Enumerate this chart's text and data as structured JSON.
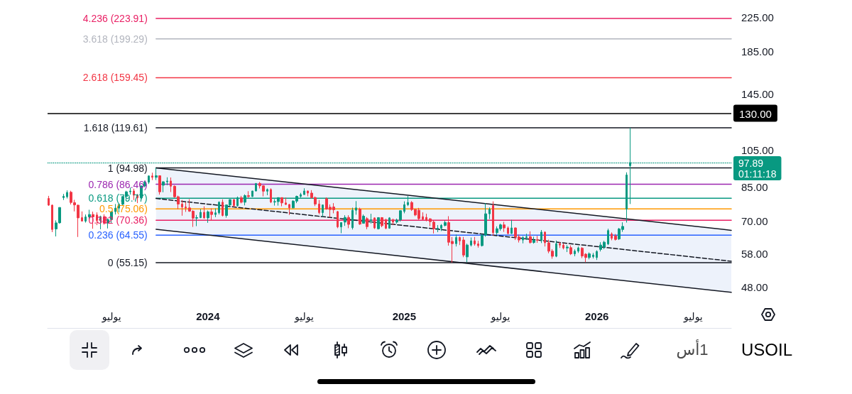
{
  "chart_data": {
    "type": "candlestick",
    "title": "USOIL",
    "annotations": [
      "01:11:18",
      "1أس"
    ],
    "xlim": [
      "2023-03-04",
      "2026-09-16"
    ],
    "xticks": [
      {
        "value": "2023-07-03",
        "label": "يوليو"
      },
      {
        "value": "2024-01-01",
        "label": "2024"
      },
      {
        "value": "2024-07-01",
        "label": "يوليو"
      },
      {
        "value": "2025-01-06",
        "label": "2025"
      },
      {
        "value": "2025-07-07",
        "label": "يوليو"
      },
      {
        "value": "2026-01-05",
        "label": "2026"
      },
      {
        "value": "2026-07-06",
        "label": "يوليو"
      }
    ],
    "ylim": [
      37.9,
      249
    ],
    "log": true,
    "yticks": [
      {
        "value": 225,
        "label": "225.00"
      },
      {
        "value": 185,
        "label": "185.00"
      },
      {
        "value": 145,
        "label": "145.00"
      },
      {
        "value": 105,
        "label": "105.00"
      },
      {
        "value": 85,
        "label": "85.00"
      },
      {
        "value": 70,
        "label": "70.00"
      },
      {
        "value": 58,
        "label": "58.00"
      },
      {
        "value": 48,
        "label": "48.00"
      }
    ],
    "x": [
      "2023-03-06",
      "2023-03-13",
      "2023-03-20",
      "2023-03-27",
      "2023-04-03",
      "2023-04-10",
      "2023-04-17",
      "2023-04-24",
      "2023-05-01",
      "2023-05-08",
      "2023-05-15",
      "2023-05-22",
      "2023-05-29",
      "2023-06-05",
      "2023-06-12",
      "2023-06-19",
      "2023-06-26",
      "2023-07-03",
      "2023-07-10",
      "2023-07-17",
      "2023-07-24",
      "2023-07-31",
      "2023-08-07",
      "2023-08-14",
      "2023-08-21",
      "2023-08-28",
      "2023-09-04",
      "2023-09-11",
      "2023-09-18",
      "2023-09-25",
      "2023-10-02",
      "2023-10-09",
      "2023-10-16",
      "2023-10-23",
      "2023-10-30",
      "2023-11-06",
      "2023-11-13",
      "2023-11-20",
      "2023-11-27",
      "2023-12-04",
      "2023-12-11",
      "2023-12-18",
      "2023-12-25",
      "2024-01-01",
      "2024-01-08",
      "2024-01-15",
      "2024-01-22",
      "2024-01-29",
      "2024-02-05",
      "2024-02-12",
      "2024-02-19",
      "2024-02-26",
      "2024-03-04",
      "2024-03-11",
      "2024-03-18",
      "2024-03-25",
      "2024-04-01",
      "2024-04-08",
      "2024-04-15",
      "2024-04-22",
      "2024-04-29",
      "2024-05-06",
      "2024-05-13",
      "2024-05-20",
      "2024-05-27",
      "2024-06-03",
      "2024-06-10",
      "2024-06-17",
      "2024-06-24",
      "2024-07-01",
      "2024-07-08",
      "2024-07-15",
      "2024-07-22",
      "2024-07-29",
      "2024-08-05",
      "2024-08-12",
      "2024-08-19",
      "2024-08-26",
      "2024-09-02",
      "2024-09-09",
      "2024-09-16",
      "2024-09-23",
      "2024-09-30",
      "2024-10-07",
      "2024-10-14",
      "2024-10-21",
      "2024-10-28",
      "2024-11-04",
      "2024-11-11",
      "2024-11-18",
      "2024-11-25",
      "2024-12-02",
      "2024-12-09",
      "2024-12-16",
      "2024-12-23",
      "2024-12-30",
      "2025-01-06",
      "2025-01-13",
      "2025-01-20",
      "2025-01-27",
      "2025-02-03",
      "2025-02-10",
      "2025-02-17",
      "2025-02-24",
      "2025-03-03",
      "2025-03-10",
      "2025-03-17",
      "2025-03-24",
      "2025-03-31",
      "2025-04-07",
      "2025-04-14",
      "2025-04-21",
      "2025-04-28",
      "2025-05-05",
      "2025-05-12",
      "2025-05-19",
      "2025-05-26",
      "2025-06-02",
      "2025-06-09",
      "2025-06-16",
      "2025-06-23",
      "2025-06-30",
      "2025-07-07",
      "2025-07-14",
      "2025-07-21",
      "2025-07-28",
      "2025-08-04",
      "2025-08-11",
      "2025-08-18",
      "2025-08-25",
      "2025-09-01",
      "2025-09-08",
      "2025-09-15",
      "2025-09-22",
      "2025-09-29",
      "2025-10-06",
      "2025-10-13",
      "2025-10-20",
      "2025-10-27",
      "2025-11-03",
      "2025-11-10",
      "2025-11-17",
      "2025-11-24",
      "2025-12-01",
      "2025-12-08",
      "2025-12-15",
      "2025-12-22",
      "2025-12-29",
      "2026-01-05",
      "2026-01-12",
      "2026-01-19",
      "2026-01-26",
      "2026-02-02",
      "2026-02-09",
      "2026-02-16",
      "2026-02-23",
      "2026-03-02",
      "2026-03-09"
    ],
    "ohlc": [
      [
        79.7,
        80.9,
        76.4,
        76.7
      ],
      [
        76.7,
        77.0,
        65.7,
        66.7
      ],
      [
        66.9,
        70.3,
        64.1,
        69.3
      ],
      [
        69.3,
        75.7,
        69.0,
        75.7
      ],
      [
        80.1,
        81.8,
        79.0,
        80.7
      ],
      [
        80.5,
        83.5,
        79.7,
        82.5
      ],
      [
        82.6,
        83.3,
        77.0,
        77.9
      ],
      [
        77.8,
        79.1,
        74.0,
        76.8
      ],
      [
        76.7,
        76.9,
        63.9,
        71.3
      ],
      [
        71.4,
        74.0,
        69.9,
        70.0
      ],
      [
        70.0,
        72.7,
        69.4,
        71.7
      ],
      [
        71.7,
        74.7,
        70.7,
        72.7
      ],
      [
        72.7,
        73.9,
        67.0,
        71.7
      ],
      [
        72.5,
        73.6,
        68.4,
        70.2
      ],
      [
        70.2,
        72.2,
        66.8,
        71.8
      ],
      [
        71.8,
        72.8,
        68.6,
        69.2
      ],
      [
        69.2,
        71.0,
        67.1,
        70.6
      ],
      [
        70.6,
        74.0,
        69.0,
        73.9
      ],
      [
        73.9,
        77.2,
        72.7,
        75.4
      ],
      [
        75.4,
        77.1,
        73.6,
        77.1
      ],
      [
        77.1,
        80.6,
        76.6,
        80.6
      ],
      [
        80.6,
        83.3,
        78.8,
        82.8
      ],
      [
        82.8,
        84.9,
        81.5,
        83.2
      ],
      [
        83.2,
        84.3,
        79.0,
        81.2
      ],
      [
        81.2,
        81.8,
        77.6,
        80.0
      ],
      [
        80.0,
        86.0,
        79.3,
        85.6
      ],
      [
        85.6,
        88.1,
        85.0,
        87.5
      ],
      [
        87.5,
        91.0,
        86.6,
        90.7
      ],
      [
        90.7,
        92.4,
        88.6,
        90.0
      ],
      [
        90.0,
        94.98,
        88.6,
        90.8
      ],
      [
        90.8,
        91.0,
        81.5,
        82.8
      ],
      [
        86.0,
        88.0,
        82.6,
        87.7
      ],
      [
        87.7,
        90.0,
        86.0,
        88.1
      ],
      [
        88.1,
        89.9,
        82.7,
        85.5
      ],
      [
        85.5,
        85.9,
        80.0,
        80.5
      ],
      [
        80.5,
        81.0,
        75.0,
        77.2
      ],
      [
        77.2,
        79.0,
        72.2,
        75.9
      ],
      [
        75.9,
        78.0,
        73.8,
        75.5
      ],
      [
        75.5,
        79.4,
        73.8,
        74.1
      ],
      [
        74.1,
        74.5,
        67.7,
        71.2
      ],
      [
        71.2,
        72.5,
        68.0,
        71.4
      ],
      [
        71.4,
        75.0,
        71.2,
        73.6
      ],
      [
        73.6,
        76.2,
        70.9,
        71.3
      ],
      [
        71.3,
        74.4,
        69.3,
        73.8
      ],
      [
        73.8,
        75.3,
        70.2,
        72.7
      ],
      [
        72.7,
        75.3,
        71.6,
        73.4
      ],
      [
        73.4,
        78.4,
        72.7,
        78.0
      ],
      [
        78.0,
        79.3,
        71.9,
        72.3
      ],
      [
        72.3,
        77.0,
        71.4,
        76.8
      ],
      [
        76.8,
        79.3,
        75.9,
        79.2
      ],
      [
        79.2,
        79.4,
        75.9,
        76.5
      ],
      [
        76.5,
        80.6,
        76.1,
        80.0
      ],
      [
        80.0,
        80.9,
        77.5,
        78.0
      ],
      [
        78.0,
        81.6,
        76.6,
        81.0
      ],
      [
        81.0,
        83.1,
        80.0,
        80.6
      ],
      [
        80.6,
        83.3,
        80.4,
        83.2
      ],
      [
        83.2,
        87.0,
        83.0,
        86.9
      ],
      [
        86.9,
        87.6,
        84.4,
        85.7
      ],
      [
        85.7,
        86.0,
        80.7,
        83.1
      ],
      [
        83.1,
        84.4,
        81.2,
        83.9
      ],
      [
        83.9,
        84.5,
        77.6,
        78.1
      ],
      [
        78.1,
        79.4,
        76.5,
        78.3
      ],
      [
        78.3,
        80.1,
        76.5,
        80.1
      ],
      [
        80.1,
        80.2,
        76.2,
        77.7
      ],
      [
        77.7,
        80.1,
        76.8,
        77.0
      ],
      [
        77.0,
        77.2,
        72.5,
        75.5
      ],
      [
        75.5,
        78.9,
        75.4,
        78.5
      ],
      [
        78.5,
        81.0,
        77.6,
        80.7
      ],
      [
        80.7,
        82.3,
        80.0,
        81.5
      ],
      [
        81.5,
        84.5,
        81.4,
        83.2
      ],
      [
        83.2,
        83.4,
        80.7,
        82.2
      ],
      [
        82.2,
        83.6,
        79.6,
        80.1
      ],
      [
        80.1,
        80.6,
        76.3,
        77.2
      ],
      [
        77.2,
        79.0,
        72.8,
        73.5
      ],
      [
        73.5,
        77.0,
        71.7,
        76.8
      ],
      [
        79.6,
        80.2,
        74.7,
        75.0
      ],
      [
        75.8,
        77.0,
        71.5,
        74.8
      ],
      [
        75.9,
        77.6,
        73.2,
        74.7
      ],
      [
        73.9,
        74.2,
        67.2,
        67.7
      ],
      [
        67.7,
        69.5,
        65.3,
        69.4
      ],
      [
        69.6,
        72.4,
        68.1,
        71.5
      ],
      [
        71.5,
        72.4,
        67.2,
        68.7
      ],
      [
        67.4,
        75.6,
        66.7,
        74.5
      ],
      [
        74.5,
        78.5,
        72.6,
        75.5
      ],
      [
        75.0,
        75.6,
        68.5,
        68.8
      ],
      [
        69.1,
        72.7,
        69.0,
        72.0
      ],
      [
        71.0,
        71.6,
        66.8,
        67.8
      ],
      [
        70.1,
        73.0,
        69.0,
        70.5
      ],
      [
        71.3,
        71.5,
        66.9,
        67.3
      ],
      [
        67.0,
        71.6,
        66.7,
        71.4
      ],
      [
        71.4,
        71.6,
        67.6,
        68.2
      ],
      [
        70.5,
        71.0,
        66.8,
        67.2
      ],
      [
        67.2,
        71.6,
        67.0,
        71.3
      ],
      [
        70.5,
        71.0,
        68.4,
        69.6
      ],
      [
        69.6,
        71.0,
        69.0,
        70.4
      ],
      [
        70.5,
        74.5,
        69.8,
        74.3
      ],
      [
        74.0,
        78.4,
        73.2,
        76.9
      ],
      [
        76.9,
        80.8,
        76.3,
        77.9
      ],
      [
        77.9,
        78.5,
        74.2,
        74.8
      ],
      [
        74.8,
        75.2,
        72.0,
        72.5
      ],
      [
        74.5,
        75.5,
        70.5,
        71.0
      ],
      [
        71.8,
        73.6,
        70.2,
        70.7
      ],
      [
        71.5,
        73.0,
        69.9,
        70.4
      ],
      [
        70.9,
        71.2,
        68.0,
        69.8
      ],
      [
        69.6,
        70.2,
        65.2,
        67.0
      ],
      [
        67.0,
        68.4,
        65.7,
        67.2
      ],
      [
        67.2,
        68.8,
        66.1,
        68.3
      ],
      [
        68.3,
        70.2,
        67.9,
        69.4
      ],
      [
        69.4,
        72.0,
        60.8,
        62.0
      ],
      [
        62.3,
        63.9,
        55.15,
        61.5
      ],
      [
        61.5,
        64.8,
        60.5,
        63.7
      ],
      [
        63.7,
        64.1,
        61.0,
        62.5
      ],
      [
        62.8,
        63.9,
        56.9,
        57.6
      ],
      [
        57.0,
        61.5,
        55.3,
        61.0
      ],
      [
        61.0,
        63.7,
        60.5,
        62.5
      ],
      [
        62.5,
        63.9,
        60.8,
        61.4
      ],
      [
        61.4,
        62.5,
        60.1,
        60.8
      ],
      [
        60.8,
        65.0,
        60.5,
        64.6
      ],
      [
        64.6,
        77.6,
        64.0,
        73.0
      ],
      [
        73.0,
        75.7,
        70.8,
        74.9
      ],
      [
        76.6,
        78.4,
        64.4,
        65.5
      ],
      [
        65.5,
        67.9,
        64.7,
        67.0
      ],
      [
        67.0,
        69.0,
        66.2,
        68.5
      ],
      [
        68.5,
        69.7,
        65.8,
        67.3
      ],
      [
        67.3,
        67.9,
        64.8,
        65.2
      ],
      [
        65.2,
        70.5,
        65.0,
        67.3
      ],
      [
        67.3,
        67.5,
        62.8,
        63.9
      ],
      [
        63.9,
        64.8,
        61.9,
        62.8
      ],
      [
        62.8,
        64.2,
        61.6,
        63.7
      ],
      [
        63.7,
        65.1,
        62.8,
        64.0
      ],
      [
        64.0,
        66.0,
        61.5,
        61.9
      ],
      [
        61.9,
        64.0,
        61.5,
        62.7
      ],
      [
        62.9,
        64.3,
        61.8,
        62.7
      ],
      [
        62.7,
        66.5,
        61.7,
        65.7
      ],
      [
        65.7,
        66.0,
        60.5,
        61.8
      ],
      [
        61.8,
        62.9,
        58.2,
        58.9
      ],
      [
        58.9,
        59.6,
        56.4,
        57.2
      ],
      [
        57.2,
        62.6,
        56.9,
        61.5
      ],
      [
        61.5,
        62.1,
        60.0,
        61.0
      ],
      [
        61.0,
        61.6,
        59.5,
        60.0
      ],
      [
        60.0,
        61.0,
        58.6,
        60.3
      ],
      [
        60.1,
        60.9,
        57.6,
        58.0
      ],
      [
        58.0,
        59.5,
        57.2,
        58.9
      ],
      [
        58.9,
        60.5,
        58.3,
        60.0
      ],
      [
        59.9,
        60.3,
        56.6,
        57.3
      ],
      [
        57.9,
        58.2,
        55.3,
        56.8
      ],
      [
        56.8,
        58.5,
        56.2,
        58.0
      ],
      [
        57.1,
        58.3,
        56.5,
        57.6
      ],
      [
        56.8,
        59.2,
        56.0,
        58.8
      ],
      [
        59.5,
        62.0,
        58.8,
        61.0
      ],
      [
        60.3,
        62.5,
        59.6,
        62.0
      ],
      [
        61.4,
        67.0,
        61.0,
        66.3
      ],
      [
        65.0,
        65.6,
        62.7,
        63.4
      ],
      [
        64.3,
        65.0,
        62.6,
        63.0
      ],
      [
        63.2,
        67.3,
        62.8,
        66.9
      ],
      [
        66.7,
        69.5,
        65.8,
        67.9
      ],
      [
        75.0,
        92.6,
        69.4,
        91.2
      ],
      [
        96.2,
        119.61,
        77.2,
        97.89
      ]
    ],
    "colors": [
      "#f23645",
      "#f23645",
      "#089981",
      "#089981",
      "#089981",
      "#089981",
      "#f23645",
      "#f23645",
      "#f23645",
      "#f23645",
      "#089981",
      "#089981",
      "#f23645",
      "#f23645",
      "#089981",
      "#f23645",
      "#089981",
      "#089981",
      "#089981",
      "#089981",
      "#089981",
      "#089981",
      "#089981",
      "#f23645",
      "#f23645",
      "#089981",
      "#089981",
      "#089981",
      "#f23645",
      "#089981",
      "#f23645",
      "#089981",
      "#089981",
      "#f23645",
      "#f23645",
      "#f23645",
      "#f23645",
      "#f23645",
      "#f23645",
      "#f23645",
      "#089981",
      "#089981",
      "#f23645",
      "#089981",
      "#f23645",
      "#089981",
      "#089981",
      "#f23645",
      "#089981",
      "#089981",
      "#f23645",
      "#089981",
      "#f23645",
      "#089981",
      "#f23645",
      "#089981",
      "#089981",
      "#f23645",
      "#f23645",
      "#089981",
      "#f23645",
      "#089981",
      "#089981",
      "#f23645",
      "#f23645",
      "#f23645",
      "#089981",
      "#089981",
      "#089981",
      "#089981",
      "#f23645",
      "#f23645",
      "#f23645",
      "#f23645",
      "#089981",
      "#f23645",
      "#f23645",
      "#f23645",
      "#f23645",
      "#089981",
      "#089981",
      "#f23645",
      "#089981",
      "#089981",
      "#f23645",
      "#089981",
      "#f23645",
      "#089981",
      "#f23645",
      "#089981",
      "#f23645",
      "#f23645",
      "#089981",
      "#f23645",
      "#089981",
      "#089981",
      "#089981",
      "#089981",
      "#f23645",
      "#f23645",
      "#f23645",
      "#f23645",
      "#f23645",
      "#f23645",
      "#f23645",
      "#089981",
      "#089981",
      "#089981",
      "#f23645",
      "#f23645",
      "#089981",
      "#f23645",
      "#f23645",
      "#089981",
      "#089981",
      "#f23645",
      "#f23645",
      "#089981",
      "#089981",
      "#089981",
      "#f23645",
      "#089981",
      "#089981",
      "#f23645",
      "#f23645",
      "#089981",
      "#f23645",
      "#f23645",
      "#089981",
      "#089981",
      "#f23645",
      "#089981",
      "#f23645",
      "#089981",
      "#f23645",
      "#f23645",
      "#f23645",
      "#089981",
      "#f23645",
      "#f23645",
      "#089981",
      "#f23645",
      "#089981",
      "#089981",
      "#f23645",
      "#f23645",
      "#089981",
      "#089981",
      "#089981",
      "#089981",
      "#089981",
      "#089981",
      "#f23645",
      "#f23645",
      "#089981",
      "#089981",
      "#089981",
      "#089981"
    ],
    "series": [
      {
        "type": "line",
        "name": "4.236 (223.91)",
        "color": "#e91e63",
        "x": [
          "2023-09-25",
          "2026-09-16"
        ],
        "values": [
          223.91,
          223.91
        ]
      },
      {
        "type": "line",
        "name": "3.618 (199.29)",
        "color": "#b2b5be",
        "x": [
          "2023-09-25",
          "2026-09-16"
        ],
        "values": [
          199.29,
          199.29
        ]
      },
      {
        "type": "line",
        "name": "2.618 (159.45)",
        "color": "#f23645",
        "x": [
          "2023-09-25",
          "2026-09-16"
        ],
        "values": [
          159.45,
          159.45
        ]
      },
      {
        "type": "line",
        "name": "1.618 (119.61)",
        "color": "#131722",
        "x": [
          "2023-09-25",
          "2026-09-16"
        ],
        "values": [
          119.61,
          119.61
        ]
      },
      {
        "type": "line",
        "name": "1 (94.98)",
        "color": "#131722",
        "x": [
          "2023-09-25",
          "2026-09-16"
        ],
        "values": [
          94.98,
          94.98
        ]
      },
      {
        "type": "line",
        "name": "0.786 (86.46)",
        "color": "#9c27b0",
        "x": [
          "2023-09-25",
          "2026-09-16"
        ],
        "values": [
          86.46,
          86.46
        ]
      },
      {
        "type": "line",
        "name": "0.618 (79.77)",
        "color": "#089981",
        "x": [
          "2023-09-25",
          "2026-09-16"
        ],
        "values": [
          79.77,
          79.77
        ]
      },
      {
        "type": "line",
        "name": "0.5 (75.06)",
        "color": "#ff9800",
        "x": [
          "2023-09-25",
          "2026-09-16"
        ],
        "values": [
          75.06,
          75.06
        ]
      },
      {
        "type": "line",
        "name": "0.382 (70.36)",
        "color": "#e91e63",
        "x": [
          "2023-09-25",
          "2026-09-16"
        ],
        "values": [
          70.36,
          70.36
        ]
      },
      {
        "type": "line",
        "name": "0.236 (64.55)",
        "color": "#2962ff",
        "x": [
          "2023-09-25",
          "2026-09-16"
        ],
        "values": [
          64.55,
          64.55
        ]
      },
      {
        "type": "line",
        "name": "0 (55.15)",
        "color": "#131722",
        "x": [
          "2023-09-25",
          "2026-09-16"
        ],
        "values": [
          55.15,
          55.15
        ]
      },
      {
        "type": "line",
        "color": "#131722",
        "line_style": "dashed",
        "x": [
          "2023-09-25",
          "2026-09-16"
        ],
        "values": [
          79.7,
          55.6
        ],
        "lower": [
          66.8,
          46.5
        ],
        "upper": [
          94.98,
          66.4
        ]
      }
    ],
    "ref_lines": [
      {
        "axis": "y",
        "value": 130,
        "label": "130.00",
        "color": "#000000"
      },
      {
        "axis": "y",
        "value": 97.89,
        "label": "97.89",
        "color": "#089981",
        "line_style": "dotted"
      }
    ]
  }
}
